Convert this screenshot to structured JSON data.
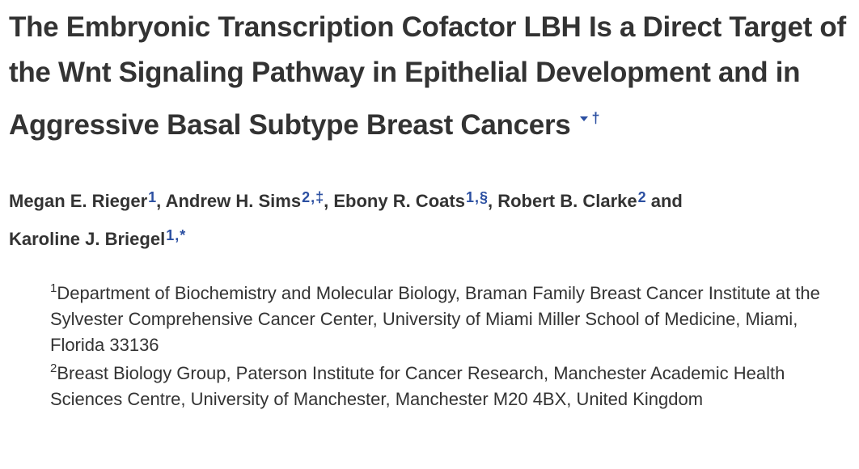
{
  "article": {
    "title": "The Embryonic Transcription Cofactor LBH Is a Direct Target of the Wnt Signaling Pathway in Epithelial Development and in Aggressive Basal Subtype Breast Cancers",
    "title_marks": {
      "dagger": "†"
    }
  },
  "authors": [
    {
      "name": "Megan E. Rieger",
      "affs": [
        "1"
      ],
      "sep": ", "
    },
    {
      "name": "Andrew H. Sims",
      "affs": [
        "2",
        "‡"
      ],
      "sep": ", "
    },
    {
      "name": "Ebony R. Coats",
      "affs": [
        "1",
        "§"
      ],
      "sep": ", "
    },
    {
      "name": "Robert B. Clarke",
      "affs": [
        "2"
      ],
      "sep": " and "
    },
    {
      "name": "Karoline J. Briegel",
      "affs": [
        "1",
        "*"
      ],
      "sep": ""
    }
  ],
  "affiliations": [
    {
      "num": "1",
      "text": "Department of Biochemistry and Molecular Biology, Braman Family Breast Cancer Institute at the Sylvester Comprehensive Cancer Center, University of Miami Miller School of Medicine, Miami, Florida 33136"
    },
    {
      "num": "2",
      "text": "Breast Biology Group, Paterson Institute for Cancer Research, Manchester Academic Health Sciences Centre, University of Manchester, Manchester M20 4BX, United Kingdom"
    }
  ],
  "colors": {
    "text": "#333333",
    "link": "#2b4fa1",
    "background": "#ffffff"
  }
}
